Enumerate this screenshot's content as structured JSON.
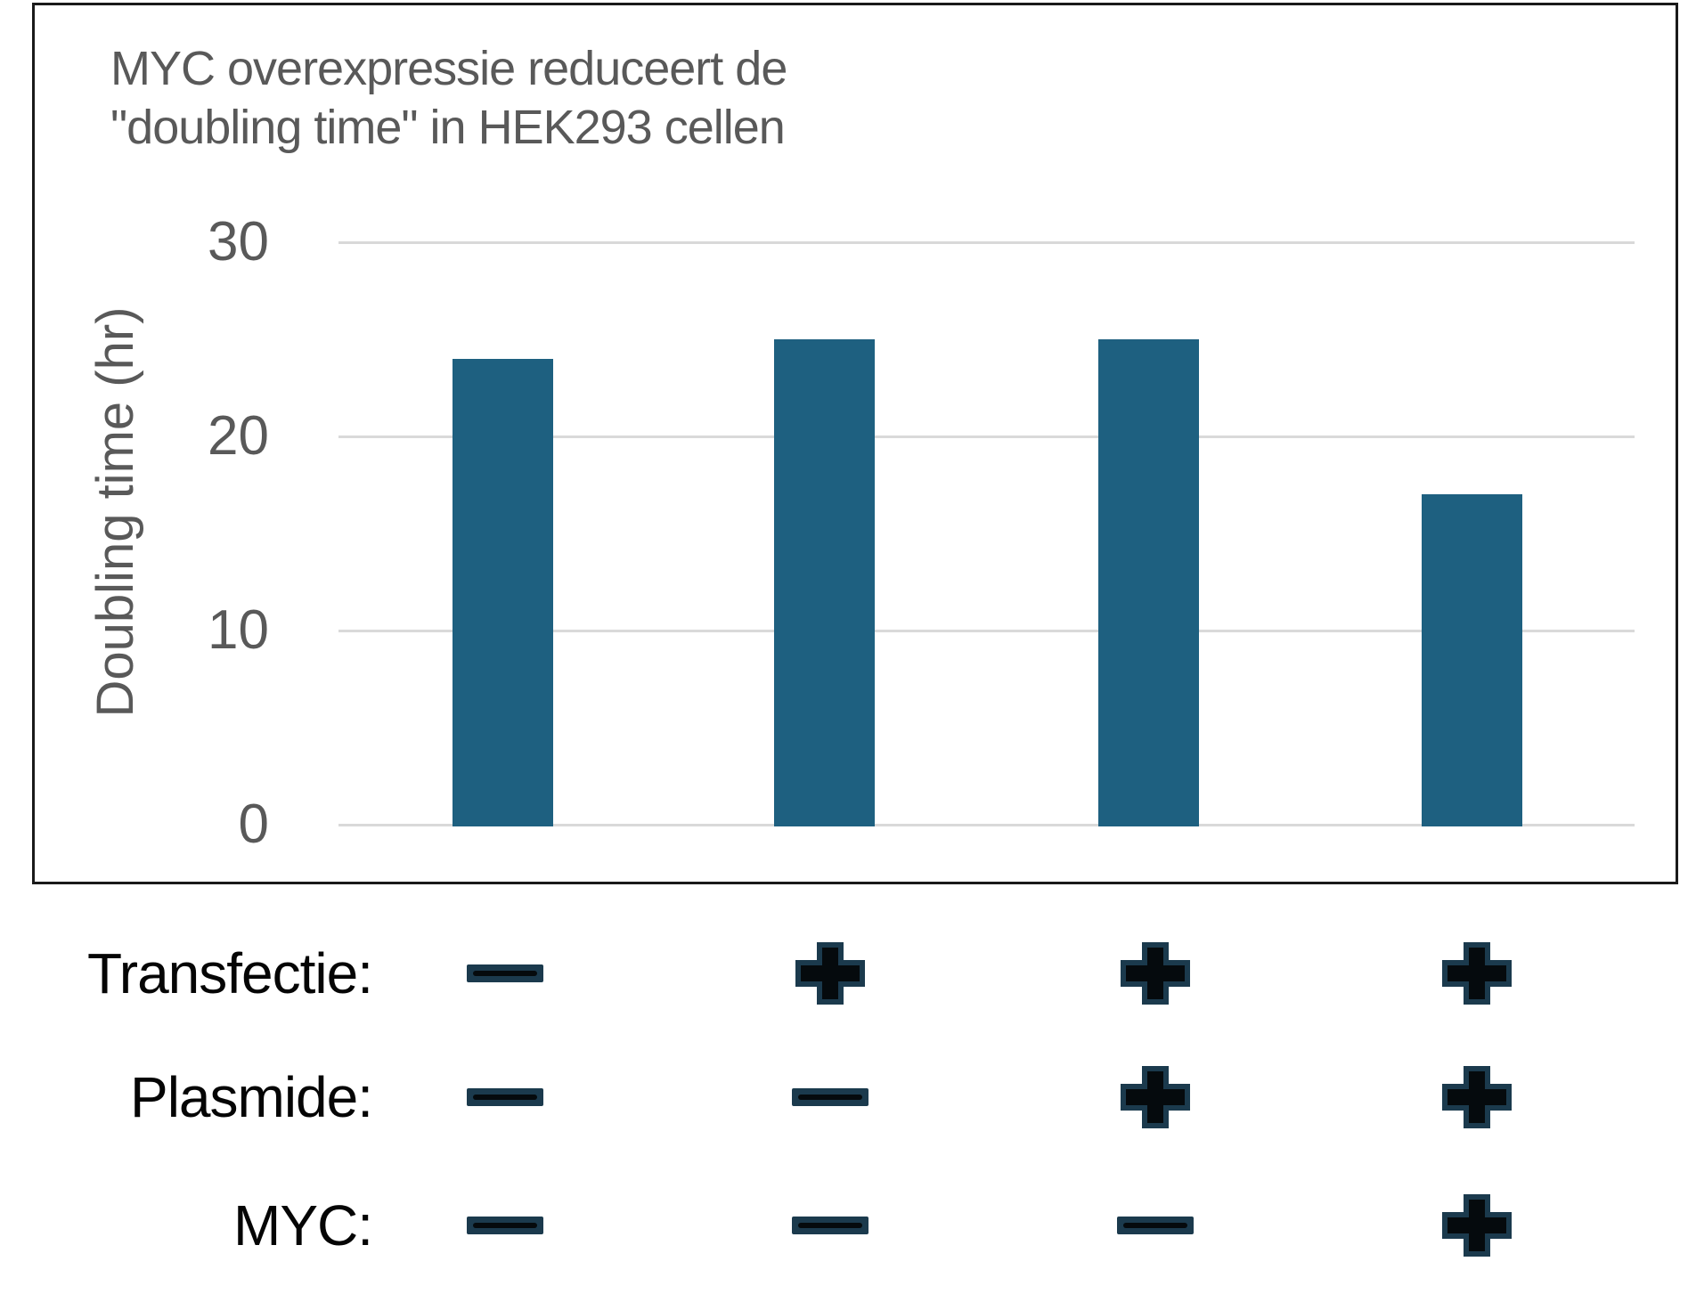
{
  "chart_data": {
    "type": "bar",
    "title": "MYC overexpressie reduceert de \"doubling time\" in HEK293 cellen",
    "title_lines": [
      "MYC overexpressie reduceert de",
      "\"doubling time\" in HEK293 cellen"
    ],
    "ylabel": "Doubling time (hr)",
    "ylim": [
      0,
      30
    ],
    "yticks": [
      0,
      10,
      20,
      30
    ],
    "grid": true,
    "legend": "none",
    "values": [
      24,
      25,
      25,
      17
    ],
    "bar_color": "#1E6080"
  },
  "condition_matrix": {
    "rows": [
      {
        "label": "Transfectie:",
        "symbols": [
          "minus",
          "plus",
          "plus",
          "plus"
        ]
      },
      {
        "label": "Plasmide:",
        "symbols": [
          "minus",
          "minus",
          "plus",
          "plus"
        ]
      },
      {
        "label": "MYC:",
        "symbols": [
          "minus",
          "minus",
          "minus",
          "plus"
        ]
      }
    ],
    "plus_glyph": "+",
    "minus_glyph": "−",
    "symbol_fill": "#050a0d",
    "symbol_outline": "#1B3A4D"
  },
  "colors": {
    "title_text": "#595959",
    "axis_text": "#595959",
    "gridline": "#D9D9D9",
    "chart_border": "#1A1A1A",
    "background": "#FFFFFF"
  }
}
